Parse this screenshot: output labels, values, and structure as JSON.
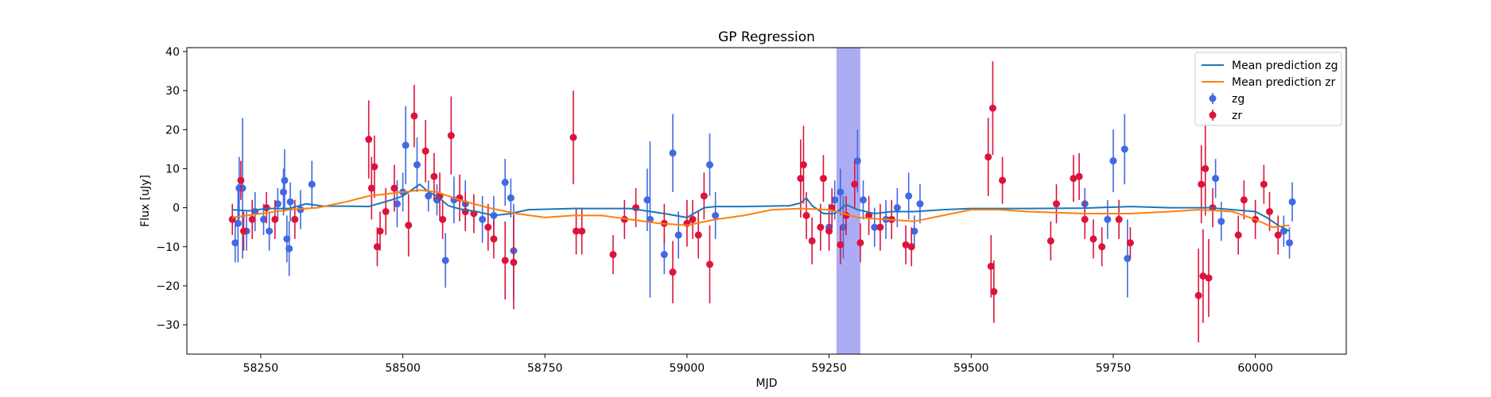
{
  "chart_data": {
    "type": "scatter",
    "title": "GP Regression",
    "xlabel": "MJD",
    "ylabel": "Flux [uJy]",
    "xlim": [
      58120,
      60160
    ],
    "ylim": [
      -37.5,
      41
    ],
    "xticks": [
      58250,
      58500,
      58750,
      59000,
      59250,
      59500,
      59750,
      60000
    ],
    "yticks": [
      -30,
      -20,
      -10,
      0,
      10,
      20,
      30,
      40
    ],
    "grid": false,
    "legend_position": "top-right",
    "colors": {
      "zg_points": "#4169e1",
      "zr_points": "#dc143c",
      "mean_zg": "#1f77b4",
      "mean_zr": "#ff7f0e",
      "highlight": "#8080f0"
    },
    "highlight_span": {
      "x0": 59263,
      "x1": 59305
    },
    "series": [
      {
        "name": "Mean prediction zg",
        "kind": "line",
        "color": "#1f77b4",
        "points": [
          [
            58200,
            -0.5
          ],
          [
            58230,
            -0.8
          ],
          [
            58260,
            -0.2
          ],
          [
            58300,
            -0.2
          ],
          [
            58330,
            1.0
          ],
          [
            58360,
            0.4
          ],
          [
            58400,
            0.4
          ],
          [
            58440,
            0.3
          ],
          [
            58480,
            2.0
          ],
          [
            58500,
            3.0
          ],
          [
            58520,
            5.0
          ],
          [
            58530,
            6.0
          ],
          [
            58545,
            4.0
          ],
          [
            58560,
            3.0
          ],
          [
            58580,
            0.5
          ],
          [
            58600,
            -0.3
          ],
          [
            58630,
            -1.0
          ],
          [
            58660,
            -2.0
          ],
          [
            58690,
            -1.5
          ],
          [
            58720,
            -0.5
          ],
          [
            58800,
            -0.2
          ],
          [
            58900,
            -0.2
          ],
          [
            58960,
            -1.5
          ],
          [
            59000,
            -2.5
          ],
          [
            59030,
            0.0
          ],
          [
            59050,
            0.3
          ],
          [
            59100,
            0.3
          ],
          [
            59180,
            0.5
          ],
          [
            59200,
            1.2
          ],
          [
            59210,
            2.5
          ],
          [
            59220,
            0.5
          ],
          [
            59240,
            -1.5
          ],
          [
            59260,
            -1.5
          ],
          [
            59280,
            0.8
          ],
          [
            59300,
            -0.5
          ],
          [
            59330,
            -1.5
          ],
          [
            59360,
            -1.0
          ],
          [
            59400,
            -1.0
          ],
          [
            59450,
            -0.5
          ],
          [
            59500,
            -0.2
          ],
          [
            59600,
            -0.2
          ],
          [
            59700,
            -0.1
          ],
          [
            59780,
            0.3
          ],
          [
            59850,
            0.0
          ],
          [
            59920,
            0.0
          ],
          [
            59960,
            -0.5
          ],
          [
            60000,
            -1.0
          ],
          [
            60020,
            -2.5
          ],
          [
            60040,
            -4.5
          ],
          [
            60060,
            -6.0
          ]
        ]
      },
      {
        "name": "Mean prediction zr",
        "kind": "line",
        "color": "#ff7f0e",
        "points": [
          [
            58200,
            -2.5
          ],
          [
            58250,
            -1.5
          ],
          [
            58300,
            -0.5
          ],
          [
            58350,
            0.0
          ],
          [
            58400,
            1.5
          ],
          [
            58440,
            3.0
          ],
          [
            58500,
            4.0
          ],
          [
            58530,
            4.5
          ],
          [
            58560,
            4.0
          ],
          [
            58600,
            2.0
          ],
          [
            58650,
            0.0
          ],
          [
            58700,
            -1.5
          ],
          [
            58750,
            -2.5
          ],
          [
            58800,
            -2.0
          ],
          [
            58850,
            -2.0
          ],
          [
            58900,
            -3.0
          ],
          [
            58950,
            -4.0
          ],
          [
            59000,
            -4.5
          ],
          [
            59050,
            -3.0
          ],
          [
            59100,
            -2.0
          ],
          [
            59150,
            -0.5
          ],
          [
            59200,
            -0.2
          ],
          [
            59250,
            -0.5
          ],
          [
            59300,
            -2.5
          ],
          [
            59350,
            -3.0
          ],
          [
            59400,
            -3.5
          ],
          [
            59450,
            -2.0
          ],
          [
            59500,
            -0.5
          ],
          [
            59550,
            -0.5
          ],
          [
            59600,
            -1.0
          ],
          [
            59700,
            -1.5
          ],
          [
            59780,
            -1.5
          ],
          [
            59850,
            -1.0
          ],
          [
            59900,
            -0.5
          ],
          [
            59960,
            -1.0
          ],
          [
            60000,
            -3.0
          ],
          [
            60030,
            -5.0
          ],
          [
            60060,
            -4.5
          ]
        ]
      },
      {
        "name": "zg",
        "kind": "errorbar",
        "color": "#4169e1",
        "points": [
          [
            58205,
            -9,
            5
          ],
          [
            58210,
            -4,
            10
          ],
          [
            58212,
            5,
            8
          ],
          [
            58218,
            5,
            18
          ],
          [
            58225,
            -6,
            5
          ],
          [
            58240,
            -1,
            5
          ],
          [
            58255,
            -3,
            4
          ],
          [
            58265,
            -6,
            5
          ],
          [
            58280,
            1,
            4
          ],
          [
            58290,
            4,
            6
          ],
          [
            58292,
            7,
            8
          ],
          [
            58296,
            -8,
            6
          ],
          [
            58300,
            -10.5,
            7
          ],
          [
            58302,
            1.5,
            5
          ],
          [
            58320,
            -0.5,
            5
          ],
          [
            58340,
            6,
            6
          ],
          [
            58490,
            1,
            6
          ],
          [
            58500,
            4,
            5
          ],
          [
            58505,
            16,
            10
          ],
          [
            58525,
            11,
            7
          ],
          [
            58545,
            3,
            4
          ],
          [
            58560,
            2,
            4
          ],
          [
            58575,
            -13.5,
            7
          ],
          [
            58590,
            2,
            6
          ],
          [
            58610,
            1,
            6
          ],
          [
            58640,
            -3,
            6
          ],
          [
            58660,
            -2,
            5
          ],
          [
            58680,
            6.5,
            6
          ],
          [
            58690,
            2.5,
            5
          ],
          [
            58695,
            -11,
            12
          ],
          [
            58930,
            2,
            8
          ],
          [
            58935,
            -3,
            20
          ],
          [
            58960,
            -12,
            5
          ],
          [
            58975,
            14,
            10
          ],
          [
            58985,
            -7,
            6
          ],
          [
            59040,
            11,
            8
          ],
          [
            59050,
            -2,
            6
          ],
          [
            59250,
            -5,
            6
          ],
          [
            59260,
            2,
            5
          ],
          [
            59270,
            4,
            6
          ],
          [
            59275,
            -5,
            8
          ],
          [
            59300,
            12,
            8
          ],
          [
            59310,
            2,
            5
          ],
          [
            59330,
            -5,
            5
          ],
          [
            59350,
            -3,
            5
          ],
          [
            59370,
            0,
            5
          ],
          [
            59390,
            3,
            6
          ],
          [
            59400,
            -6,
            4
          ],
          [
            59410,
            1,
            5
          ],
          [
            59700,
            1,
            4
          ],
          [
            59740,
            -3,
            5
          ],
          [
            59750,
            12,
            8
          ],
          [
            59770,
            15,
            9
          ],
          [
            59775,
            -13,
            10
          ],
          [
            59930,
            7.5,
            5
          ],
          [
            59940,
            -3.5,
            5
          ],
          [
            60050,
            -6,
            4
          ],
          [
            60060,
            -9,
            4
          ],
          [
            60065,
            1.5,
            5
          ]
        ]
      },
      {
        "name": "zr",
        "kind": "errorbar",
        "color": "#dc143c",
        "points": [
          [
            58200,
            -3,
            4
          ],
          [
            58215,
            7,
            5
          ],
          [
            58220,
            -6,
            5
          ],
          [
            58235,
            -3,
            5
          ],
          [
            58260,
            0,
            4
          ],
          [
            58275,
            -3,
            5
          ],
          [
            58310,
            -3,
            5
          ],
          [
            58440,
            17.5,
            10
          ],
          [
            58445,
            5,
            8
          ],
          [
            58450,
            10.5,
            8
          ],
          [
            58455,
            -10,
            5
          ],
          [
            58460,
            -6,
            5
          ],
          [
            58470,
            -1,
            6
          ],
          [
            58485,
            5,
            6
          ],
          [
            58510,
            -4.5,
            8
          ],
          [
            58520,
            23.5,
            8
          ],
          [
            58540,
            14.5,
            8
          ],
          [
            58555,
            8,
            6
          ],
          [
            58565,
            3,
            6
          ],
          [
            58570,
            -3,
            5
          ],
          [
            58585,
            18.5,
            10
          ],
          [
            58600,
            2.5,
            6
          ],
          [
            58610,
            -1,
            5
          ],
          [
            58625,
            -1.5,
            5
          ],
          [
            58650,
            -5,
            6
          ],
          [
            58660,
            -8,
            5
          ],
          [
            58680,
            -13.5,
            10
          ],
          [
            58695,
            -14,
            12
          ],
          [
            58800,
            18,
            12
          ],
          [
            58805,
            -6,
            6
          ],
          [
            58815,
            -6,
            6
          ],
          [
            58870,
            -12,
            5
          ],
          [
            58890,
            -3,
            5
          ],
          [
            58910,
            0,
            5
          ],
          [
            58960,
            -4,
            5
          ],
          [
            58975,
            -16.5,
            8
          ],
          [
            59000,
            -4,
            6
          ],
          [
            59010,
            -3,
            5
          ],
          [
            59020,
            -7,
            6
          ],
          [
            59030,
            3,
            6
          ],
          [
            59040,
            -14.5,
            10
          ],
          [
            59200,
            7.5,
            10
          ],
          [
            59205,
            11,
            10
          ],
          [
            59210,
            -2,
            6
          ],
          [
            59220,
            -8.5,
            6
          ],
          [
            59235,
            -5,
            6
          ],
          [
            59240,
            7.5,
            6
          ],
          [
            59250,
            -6,
            5
          ],
          [
            59255,
            0,
            5
          ],
          [
            59270,
            -9.5,
            5
          ],
          [
            59280,
            -2,
            5
          ],
          [
            59295,
            6,
            6
          ],
          [
            59305,
            -9,
            5
          ],
          [
            59320,
            -2,
            5
          ],
          [
            59340,
            -5,
            6
          ],
          [
            59360,
            -3,
            5
          ],
          [
            59385,
            -9.5,
            5
          ],
          [
            59395,
            -10,
            5
          ],
          [
            59530,
            13,
            10
          ],
          [
            59535,
            -15,
            8
          ],
          [
            59538,
            25.5,
            12
          ],
          [
            59540,
            -21.5,
            8
          ],
          [
            59555,
            7,
            6
          ],
          [
            59640,
            -8.5,
            5
          ],
          [
            59650,
            1,
            5
          ],
          [
            59680,
            7.5,
            6
          ],
          [
            59690,
            8,
            6
          ],
          [
            59700,
            -3,
            5
          ],
          [
            59715,
            -8,
            5
          ],
          [
            59730,
            -10,
            5
          ],
          [
            59760,
            -3,
            5
          ],
          [
            59780,
            -9,
            4
          ],
          [
            59900,
            -22.5,
            12
          ],
          [
            59905,
            6,
            10
          ],
          [
            59908,
            -17.5,
            12
          ],
          [
            59912,
            10,
            12
          ],
          [
            59918,
            -18,
            10
          ],
          [
            59925,
            0,
            5
          ],
          [
            59970,
            -7,
            5
          ],
          [
            59980,
            2,
            5
          ],
          [
            60000,
            -3,
            5
          ],
          [
            60015,
            6,
            5
          ],
          [
            60025,
            -1,
            5
          ],
          [
            60040,
            -7,
            5
          ]
        ]
      }
    ]
  }
}
